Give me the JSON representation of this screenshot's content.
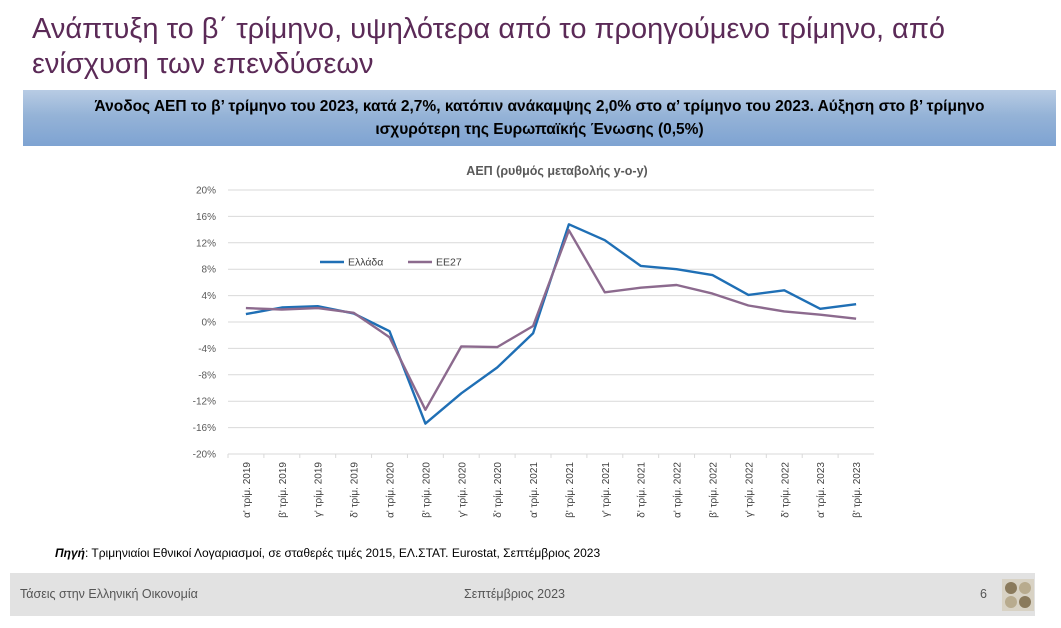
{
  "slide": {
    "title": "Ανάπτυξη το β΄ τρίμηνο, υψηλότερα από το προηγούμενο τρίμηνο, από ενίσχυση των επενδύσεων",
    "banner": "Άνοδος ΑΕΠ το β’ τρίμηνο του 2023, κατά 2,7%, κατόπιν ανάκαμψης 2,0% στο α’ τρίμηνο του 2023. Αύξηση στο β’ τρίμηνο ισχυρότερη της Ευρωπαϊκής Ένωσης (0,5%)"
  },
  "chart_data": {
    "type": "line",
    "title": "ΑΕΠ (ρυθμός μεταβολής y-o-y)",
    "categories": [
      "α' τρίμ. 2019",
      "β' τρίμ. 2019",
      "γ' τρίμ. 2019",
      "δ' τρίμ. 2019",
      "α' τρίμ. 2020",
      "β' τρίμ. 2020",
      "γ' τρίμ. 2020",
      "δ' τρίμ. 2020",
      "α' τρίμ. 2021",
      "β' τρίμ. 2021",
      "γ' τρίμ. 2021",
      "δ' τρίμ. 2021",
      "α' τρίμ. 2022",
      "β' τρίμ. 2022",
      "γ' τρίμ. 2022",
      "δ' τρίμ. 2022",
      "α' τρίμ. 2023",
      "β' τρίμ. 2023"
    ],
    "series": [
      {
        "name": "Ελλάδα",
        "color": "#1f6fb5",
        "values": [
          1.2,
          2.2,
          2.4,
          1.3,
          -1.4,
          -15.4,
          -10.8,
          -6.9,
          -1.7,
          14.8,
          12.4,
          8.5,
          8.0,
          7.1,
          4.1,
          4.8,
          2.0,
          2.7
        ]
      },
      {
        "name": "ΕΕ27",
        "color": "#8c6a8e",
        "values": [
          2.1,
          1.9,
          2.1,
          1.4,
          -2.3,
          -13.3,
          -3.7,
          -3.8,
          -0.6,
          13.9,
          4.5,
          5.2,
          5.6,
          4.3,
          2.5,
          1.6,
          1.1,
          0.5
        ]
      }
    ],
    "ylim": [
      -20,
      20
    ],
    "yticks": [
      20,
      16,
      12,
      8,
      4,
      0,
      -4,
      -8,
      -12,
      -16,
      -20
    ],
    "ytick_labels": [
      "20%",
      "16%",
      "12%",
      "8%",
      "4%",
      "0%",
      "-4%",
      "-8%",
      "-12%",
      "-16%",
      "-20%"
    ],
    "grid": true,
    "legend_position": "upper-left-inside"
  },
  "source": {
    "label": "Πηγή",
    "text": ": Τριμηνιαίοι Εθνικοί Λογαριασμοί, σε σταθερές τιμές 2015, ΕΛ.ΣΤΑΤ. Eurostat, Σεπτέμβριος 2023"
  },
  "footer": {
    "left": "Τάσεις στην Ελληνική Οικονομία",
    "center": "Σεπτέμβριος 2023",
    "page": "6"
  }
}
